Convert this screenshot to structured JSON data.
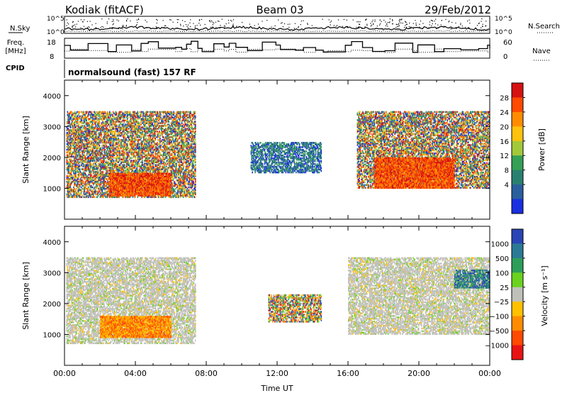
{
  "header": {
    "station": "Kodiak (fitACF)",
    "beam": "Beam 03",
    "date": "29/Feb/2012"
  },
  "noise_panel": {
    "left_label": "N.Sky",
    "right_label": "N.Search",
    "ticks": [
      "10^5",
      "10^0"
    ]
  },
  "freq_panel": {
    "left_label_1": "Freq.",
    "left_label_2": "[MHz]",
    "right_label": "Nave",
    "left_ticks": [
      "18",
      "8"
    ],
    "right_ticks": [
      "60",
      "0"
    ]
  },
  "cpid_panel": {
    "label": "CPID",
    "text": "normalsound (fast) 157 RF"
  },
  "chart_data": [
    {
      "type": "heatmap",
      "quantity": "Power",
      "ylabel": "Slant Range [km]",
      "xlabel": "",
      "ylim": [
        0,
        4500
      ],
      "yticks": [
        "1000",
        "2000",
        "3000",
        "4000"
      ],
      "colorbar": {
        "title": "Power [dB]",
        "labels": [
          "28",
          "24",
          "20",
          "16",
          "12",
          "8",
          "4"
        ],
        "colors": [
          "#d61212",
          "#ff4a00",
          "#ff8c00",
          "#ffc20e",
          "#a3c93a",
          "#35a056",
          "#2a8070",
          "#2a5f9e",
          "#1a2fe0"
        ]
      },
      "regions": [
        {
          "t0": 0.1,
          "t1": 7.4,
          "r0": 700,
          "r1": 3500,
          "level": "mixed"
        },
        {
          "t0": 2.5,
          "t1": 6.0,
          "r0": 750,
          "r1": 1500,
          "level": "high"
        },
        {
          "t0": 10.5,
          "t1": 14.5,
          "r0": 1500,
          "r1": 2500,
          "level": "low"
        },
        {
          "t0": 16.5,
          "t1": 24.0,
          "r0": 1000,
          "r1": 3500,
          "level": "mixed"
        },
        {
          "t0": 17.5,
          "t1": 22.0,
          "r0": 1000,
          "r1": 2000,
          "level": "high"
        }
      ]
    },
    {
      "type": "heatmap",
      "quantity": "Velocity",
      "ylabel": "Slant Range [km]",
      "xlabel": "Time UT",
      "ylim": [
        0,
        4500
      ],
      "yticks": [
        "1000",
        "2000",
        "3000",
        "4000"
      ],
      "xticks": [
        "00:00",
        "04:00",
        "08:00",
        "12:00",
        "16:00",
        "20:00",
        "00:00"
      ],
      "colorbar": {
        "title": "Velocity [m s⁻¹]",
        "labels": [
          "1000",
          "500",
          "100",
          "25",
          "−25",
          "−100",
          "−500",
          "−1000"
        ],
        "colors": [
          "#2a45b5",
          "#2a7a96",
          "#2d9e5a",
          "#6bd21e",
          "#c0c0bb",
          "#ffc000",
          "#ff8c00",
          "#ff4a00",
          "#e81414"
        ]
      },
      "regions": [
        {
          "t0": 0.1,
          "t1": 7.4,
          "r0": 700,
          "r1": 3500,
          "level": "mostly-near-zero"
        },
        {
          "t0": 2.0,
          "t1": 6.0,
          "r0": 900,
          "r1": 1600,
          "level": "negative"
        },
        {
          "t0": 11.5,
          "t1": 14.5,
          "r0": 1400,
          "r1": 2300,
          "level": "mixed"
        },
        {
          "t0": 16.0,
          "t1": 24.0,
          "r0": 1000,
          "r1": 3500,
          "level": "mostly-near-zero"
        },
        {
          "t0": 22.0,
          "t1": 24.0,
          "r0": 2500,
          "r1": 3100,
          "level": "positive"
        }
      ]
    }
  ]
}
